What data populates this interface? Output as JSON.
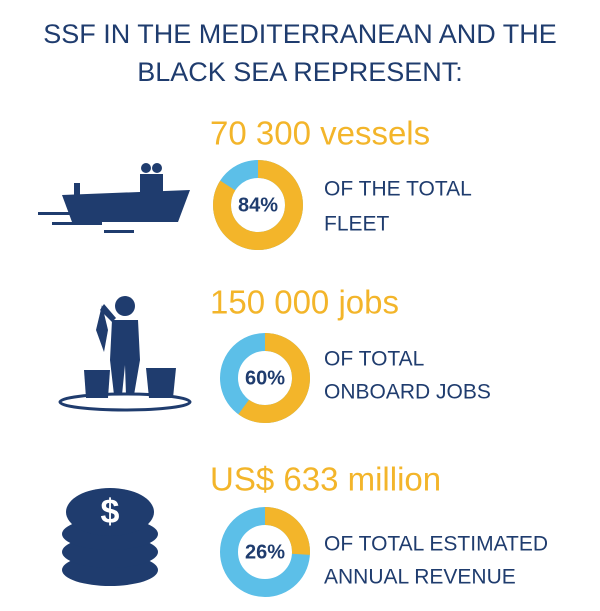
{
  "header": {
    "title": [
      "SSF IN THE MEDITERRANEAN AND THE",
      "BLACK SEA REPRESENT:"
    ]
  },
  "items": [
    {
      "headline": "70 300 vessels",
      "value": 84,
      "value_label": "84%",
      "label": [
        "OF THE TOTAL",
        "FLEET"
      ]
    },
    {
      "headline": "150 000 jobs",
      "value": 60,
      "value_label": "60%",
      "label": [
        "OF TOTAL",
        "ONBOARD JOBS"
      ]
    },
    {
      "headline": "US$ 633 million",
      "value": 26,
      "value_label": "26%",
      "label": [
        "OF TOTAL ESTIMATED",
        "ANNUAL REVENUE"
      ]
    }
  ],
  "colors": {
    "part": "#f3b52a",
    "rest": "#5cbfe8"
  }
}
